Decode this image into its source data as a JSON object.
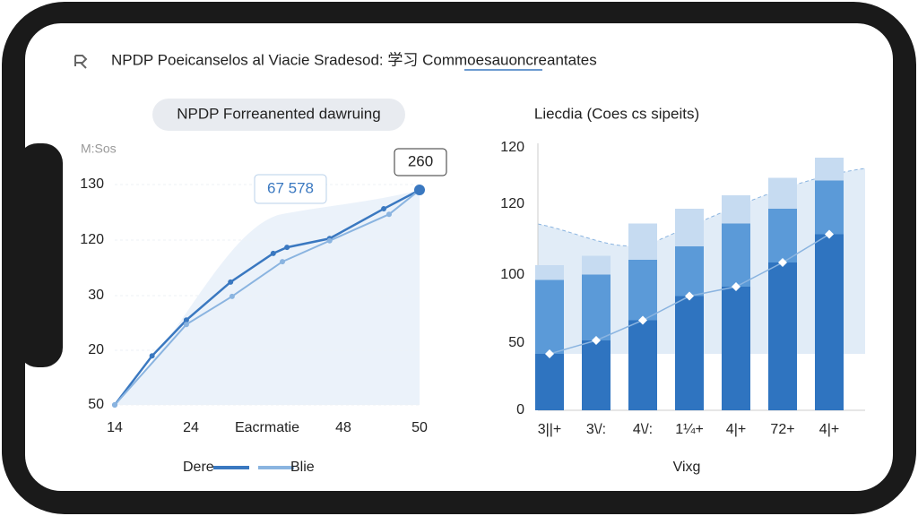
{
  "header": {
    "title": "NPDP Poeicanselos al Viacie Sradesod: 学习 Commoesauoncreantates"
  },
  "chart_data": [
    {
      "type": "line",
      "title": "NPDP Forreanented dawruing",
      "y_label": "M:Sos",
      "y_labels": [
        "130",
        "120",
        "30",
        "20",
        "50"
      ],
      "x_labels": [
        "14",
        "24",
        "Eacrmatie",
        "48",
        "50"
      ],
      "xlim": [
        0,
        4
      ],
      "ylim": [
        0,
        4
      ],
      "series": [
        {
          "name": "Dere",
          "color": "#3a78c0",
          "x": [
            0,
            0.49,
            0.94,
            1.52,
            2.08,
            2.26,
            2.82,
            3.53,
            4.0
          ],
          "values": [
            0,
            0.89,
            1.54,
            2.23,
            2.75,
            2.86,
            3.02,
            3.56,
            3.9
          ]
        },
        {
          "name": "Blie",
          "color": "#8ab4e0",
          "x": [
            0,
            0.94,
            1.54,
            2.2,
            2.82,
            3.6,
            4.0
          ],
          "values": [
            0,
            1.46,
            1.97,
            2.6,
            2.98,
            3.46,
            3.9
          ]
        }
      ],
      "annotations": [
        "67 578",
        "260"
      ]
    },
    {
      "type": "bar",
      "title": "Liecdia (Coes cs sipeits)",
      "legend": "Vixg",
      "y_labels": [
        "120",
        "120",
        "100",
        "50",
        "0"
      ],
      "categories": [
        "3||+",
        "3\\/:",
        "4\\/:",
        "1¼+",
        "4|+",
        "72+",
        "4|+"
      ],
      "ylim": [
        0,
        200
      ],
      "series": [
        {
          "color": "#2f74c0",
          "values": [
            42,
            52,
            67,
            85,
            92,
            110,
            131
          ]
        },
        {
          "color": "#5b9ad8",
          "values": [
            55,
            49,
            45,
            37,
            47,
            40,
            40
          ]
        },
        {
          "color": "#c6dbf1",
          "values": [
            11,
            14,
            27,
            28,
            21,
            23,
            17
          ]
        }
      ]
    }
  ]
}
